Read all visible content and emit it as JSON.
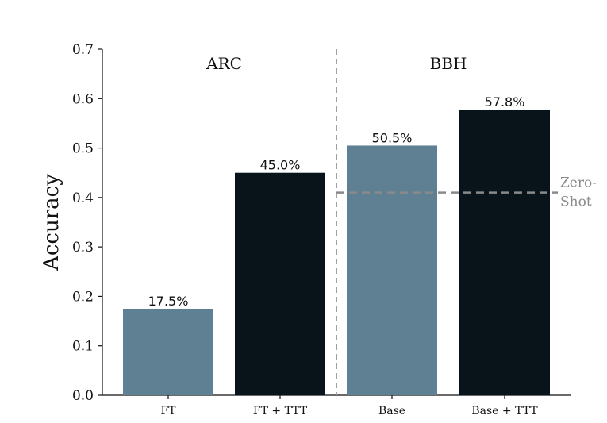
{
  "chart_data": {
    "type": "bar",
    "title": "",
    "xlabel": "",
    "ylabel": "Accuracy",
    "ylim": [
      0,
      0.7
    ],
    "yticks": [
      "0.0",
      "0.1",
      "0.2",
      "0.3",
      "0.4",
      "0.5",
      "0.6",
      "0.7"
    ],
    "categories": [
      "FT",
      "FT + TTT",
      "Base",
      "Base + TTT"
    ],
    "values": [
      0.175,
      0.45,
      0.505,
      0.578
    ],
    "value_labels": [
      "17.5%",
      "45.0%",
      "50.5%",
      "57.8%"
    ],
    "groups": [
      {
        "label": "ARC",
        "categories": [
          "FT",
          "FT + TTT"
        ]
      },
      {
        "label": "BBH",
        "categories": [
          "Base",
          "Base + TTT"
        ]
      }
    ],
    "reference_line": {
      "label_line1": "Zero-",
      "label_line2": "Shot",
      "value": 0.41,
      "group": "BBH"
    },
    "grid": false,
    "colors": {
      "baseline_bar": "#5f7f92",
      "ttt_bar": "#08141a",
      "divider": "#a0a0a0",
      "reference": "#8a8a8a"
    }
  }
}
